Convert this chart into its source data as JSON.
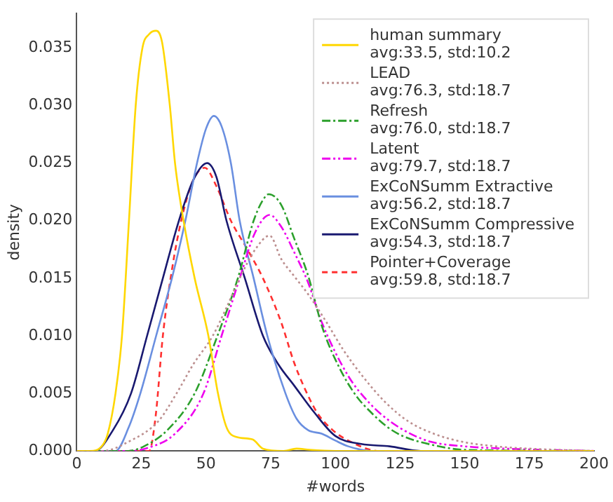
{
  "chart_data": {
    "type": "line",
    "xlabel": "#words",
    "ylabel": "density",
    "xlim": [
      0,
      200
    ],
    "ylim": [
      0,
      0.038
    ],
    "xticks": [
      0,
      25,
      50,
      75,
      100,
      125,
      150,
      175,
      200
    ],
    "yticks": [
      {
        "value": 0,
        "label": "0.000"
      },
      {
        "value": 0.005,
        "label": "0.005"
      },
      {
        "value": 0.01,
        "label": "0.010"
      },
      {
        "value": 0.015,
        "label": "0.015"
      },
      {
        "value": 0.02,
        "label": "0.020"
      },
      {
        "value": 0.025,
        "label": "0.025"
      },
      {
        "value": 0.03,
        "label": "0.030"
      },
      {
        "value": 0.035,
        "label": "0.035"
      }
    ],
    "grid": false,
    "legend": "top right",
    "series": [
      {
        "name": "human summary\navg:33.5, std:10.2",
        "color": "#ffd700",
        "line_style": "solid",
        "x": [
          0,
          5,
          10,
          12,
          15,
          17.5,
          20.2,
          22.8,
          25.4,
          28,
          30.7,
          33,
          36,
          38,
          41.3,
          45.6,
          50.9,
          54.6,
          58,
          62,
          68,
          72,
          80,
          85,
          90,
          100,
          200
        ],
        "values": [
          0,
          0,
          0.0005,
          0.0015,
          0.005,
          0.01,
          0.02,
          0.03,
          0.035,
          0.0362,
          0.0365,
          0.0355,
          0.03,
          0.025,
          0.02,
          0.015,
          0.01,
          0.005,
          0.002,
          0.0012,
          0.001,
          0.0002,
          0,
          0.0002,
          0.0001,
          0,
          0
        ]
      },
      {
        "name": "LEAD\navg:76.3, std:18.7",
        "color": "#bc8f8f",
        "line_style": "dotted",
        "x": [
          0,
          10,
          20,
          31.6,
          38.6,
          45,
          52.6,
          58,
          63,
          69,
          74.6,
          79,
          84,
          89.5,
          96.5,
          103,
          110.5,
          119,
          128,
          138,
          149,
          162,
          175,
          200
        ],
        "values": [
          0,
          0,
          0.0008,
          0.0026,
          0.005,
          0.0075,
          0.01,
          0.0125,
          0.015,
          0.0175,
          0.0187,
          0.0167,
          0.0152,
          0.0136,
          0.0112,
          0.0088,
          0.0065,
          0.0043,
          0.0026,
          0.0015,
          0.0008,
          0.0004,
          0.0002,
          0
        ]
      },
      {
        "name": "Refresh\navg:76.0, std:18.7",
        "color": "#2ca02c",
        "line_style": "dashdot",
        "x": [
          0,
          20,
          26,
          35,
          45.6,
          54.4,
          62.3,
          68.4,
          72,
          74.2,
          79,
          84,
          89.5,
          95,
          101.6,
          108,
          114,
          120,
          126,
          138,
          150,
          200
        ],
        "values": [
          0,
          0,
          0.0004,
          0.0018,
          0.005,
          0.01,
          0.015,
          0.02,
          0.0218,
          0.0223,
          0.0214,
          0.0185,
          0.0152,
          0.0107,
          0.0072,
          0.0048,
          0.0033,
          0.0021,
          0.0013,
          0.0005,
          0.0001,
          0
        ]
      },
      {
        "name": "Latent\navg:79.7, std:18.7",
        "color": "#ee00ee",
        "line_style": "dashdotdot",
        "x": [
          0,
          20,
          28,
          38,
          49,
          56,
          63,
          69,
          74.6,
          79,
          84,
          89.5,
          94.7,
          105,
          113,
          121,
          129,
          136.8,
          150,
          166,
          200
        ],
        "values": [
          0,
          0,
          0.0003,
          0.0015,
          0.005,
          0.01,
          0.015,
          0.019,
          0.0205,
          0.0195,
          0.0173,
          0.0146,
          0.0112,
          0.0065,
          0.0042,
          0.0026,
          0.0015,
          0.0008,
          0.0004,
          0.0002,
          0
        ]
      },
      {
        "name": "ExCoNSumm Extractive\navg:56.2, std:18.7",
        "color": "#6a8fe0",
        "line_style": "solid",
        "x": [
          0,
          15,
          20,
          24.6,
          30.7,
          36.8,
          42,
          46.5,
          50,
          53,
          56,
          59.6,
          63,
          68.4,
          73.7,
          80.7,
          85,
          89.5,
          94.7,
          100,
          105,
          114,
          200
        ],
        "values": [
          0,
          0,
          0.002,
          0.005,
          0.01,
          0.015,
          0.02,
          0.025,
          0.028,
          0.0291,
          0.0282,
          0.025,
          0.02,
          0.015,
          0.01,
          0.005,
          0.0028,
          0.0018,
          0.0015,
          0.0009,
          0.0004,
          0,
          0
        ]
      },
      {
        "name": "ExCoNSumm Compressive\navg:54.3, std:18.7",
        "color": "#191970",
        "line_style": "solid",
        "x": [
          0,
          7,
          14,
          21,
          27.2,
          33.3,
          39.5,
          45,
          50.4,
          54,
          57.9,
          65,
          72,
          78,
          84,
          92,
          100,
          110,
          121,
          133,
          200
        ],
        "values": [
          0,
          0,
          0.0018,
          0.005,
          0.01,
          0.015,
          0.02,
          0.0235,
          0.025,
          0.0238,
          0.02,
          0.015,
          0.01,
          0.0075,
          0.0057,
          0.0033,
          0.0013,
          0.0006,
          0.0004,
          0,
          0
        ]
      },
      {
        "name": "Pointer+Coverage\navg:59.8, std:18.7",
        "color": "#ff3030",
        "line_style": "dashed",
        "x": [
          0,
          28,
          30.5,
          33.3,
          37,
          40.4,
          45,
          49.5,
          54,
          59.6,
          66,
          72,
          79,
          84,
          88,
          93,
          99,
          105,
          117,
          200
        ],
        "values": [
          0,
          0,
          0.003,
          0.01,
          0.016,
          0.02,
          0.0235,
          0.0246,
          0.023,
          0.02,
          0.0175,
          0.015,
          0.0112,
          0.0077,
          0.0055,
          0.0033,
          0.0018,
          0.0009,
          0,
          0
        ]
      }
    ]
  }
}
